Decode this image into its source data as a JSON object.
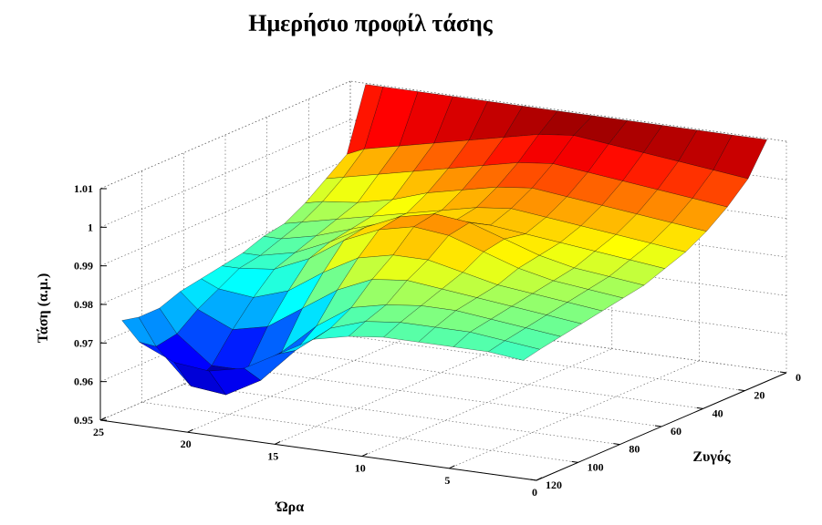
{
  "chart_data": {
    "type": "surface3d",
    "title": "Ημερήσιο προφίλ τάσης",
    "xlabel": "Ώρα",
    "ylabel": "Ζυγός",
    "zlabel": "Τάση (α.μ.)",
    "xlim": [
      0,
      25
    ],
    "ylim": [
      0,
      120
    ],
    "zlim": [
      0.95,
      1.01
    ],
    "x_ticks": [
      0,
      5,
      10,
      15,
      20,
      25
    ],
    "y_ticks": [
      0,
      20,
      40,
      60,
      80,
      100,
      120
    ],
    "z_ticks": [
      0.95,
      0.96,
      0.97,
      0.98,
      0.99,
      1,
      1.01
    ],
    "colormap": "jet",
    "grid": true,
    "x": [
      1,
      3,
      5,
      7,
      9,
      11,
      13,
      15,
      17,
      19,
      21,
      23,
      24
    ],
    "y": [
      1,
      10,
      20,
      30,
      40,
      50,
      60,
      70,
      80,
      90,
      100,
      110,
      118
    ],
    "z": [
      [
        1.01,
        1.01,
        1.01,
        1.01,
        1.01,
        1.01,
        1.01,
        1.01,
        1.01,
        1.01,
        1.01,
        1.01,
        1.01
      ],
      [
        1.002,
        1.003,
        1.004,
        1.005,
        1.006,
        1.007,
        1.006,
        1.004,
        1.002,
        1.0,
        0.998,
        0.996,
        0.994
      ],
      [
        0.997,
        0.998,
        0.999,
        1.0,
        1.001,
        1.002,
        1.001,
        0.999,
        0.997,
        0.995,
        0.993,
        0.991,
        0.99
      ],
      [
        0.993,
        0.994,
        0.995,
        0.996,
        0.997,
        0.998,
        0.997,
        0.995,
        0.993,
        0.99,
        0.988,
        0.987,
        0.986
      ],
      [
        0.99,
        0.991,
        0.992,
        0.993,
        0.994,
        0.995,
        0.994,
        0.992,
        0.99,
        0.988,
        0.986,
        0.984,
        0.983
      ],
      [
        0.988,
        0.989,
        0.99,
        0.991,
        0.992,
        0.993,
        0.993,
        0.992,
        0.99,
        0.987,
        0.984,
        0.982,
        0.982
      ],
      [
        0.986,
        0.987,
        0.988,
        0.99,
        0.993,
        0.996,
        0.997,
        0.995,
        0.991,
        0.986,
        0.982,
        0.98,
        0.98
      ],
      [
        0.985,
        0.986,
        0.987,
        0.989,
        0.992,
        0.995,
        0.996,
        0.994,
        0.99,
        0.984,
        0.98,
        0.979,
        0.979
      ],
      [
        0.984,
        0.985,
        0.986,
        0.987,
        0.989,
        0.991,
        0.991,
        0.989,
        0.984,
        0.978,
        0.975,
        0.976,
        0.978
      ],
      [
        0.983,
        0.984,
        0.985,
        0.986,
        0.987,
        0.988,
        0.987,
        0.983,
        0.977,
        0.971,
        0.969,
        0.973,
        0.977
      ],
      [
        0.982,
        0.983,
        0.984,
        0.985,
        0.985,
        0.984,
        0.982,
        0.976,
        0.968,
        0.962,
        0.962,
        0.969,
        0.975
      ],
      [
        0.981,
        0.982,
        0.983,
        0.983,
        0.983,
        0.982,
        0.979,
        0.972,
        0.963,
        0.958,
        0.959,
        0.968,
        0.975
      ],
      [
        0.98,
        0.981,
        0.981,
        0.981,
        0.981,
        0.98,
        0.978,
        0.973,
        0.968,
        0.966,
        0.967,
        0.971,
        0.976
      ]
    ]
  }
}
